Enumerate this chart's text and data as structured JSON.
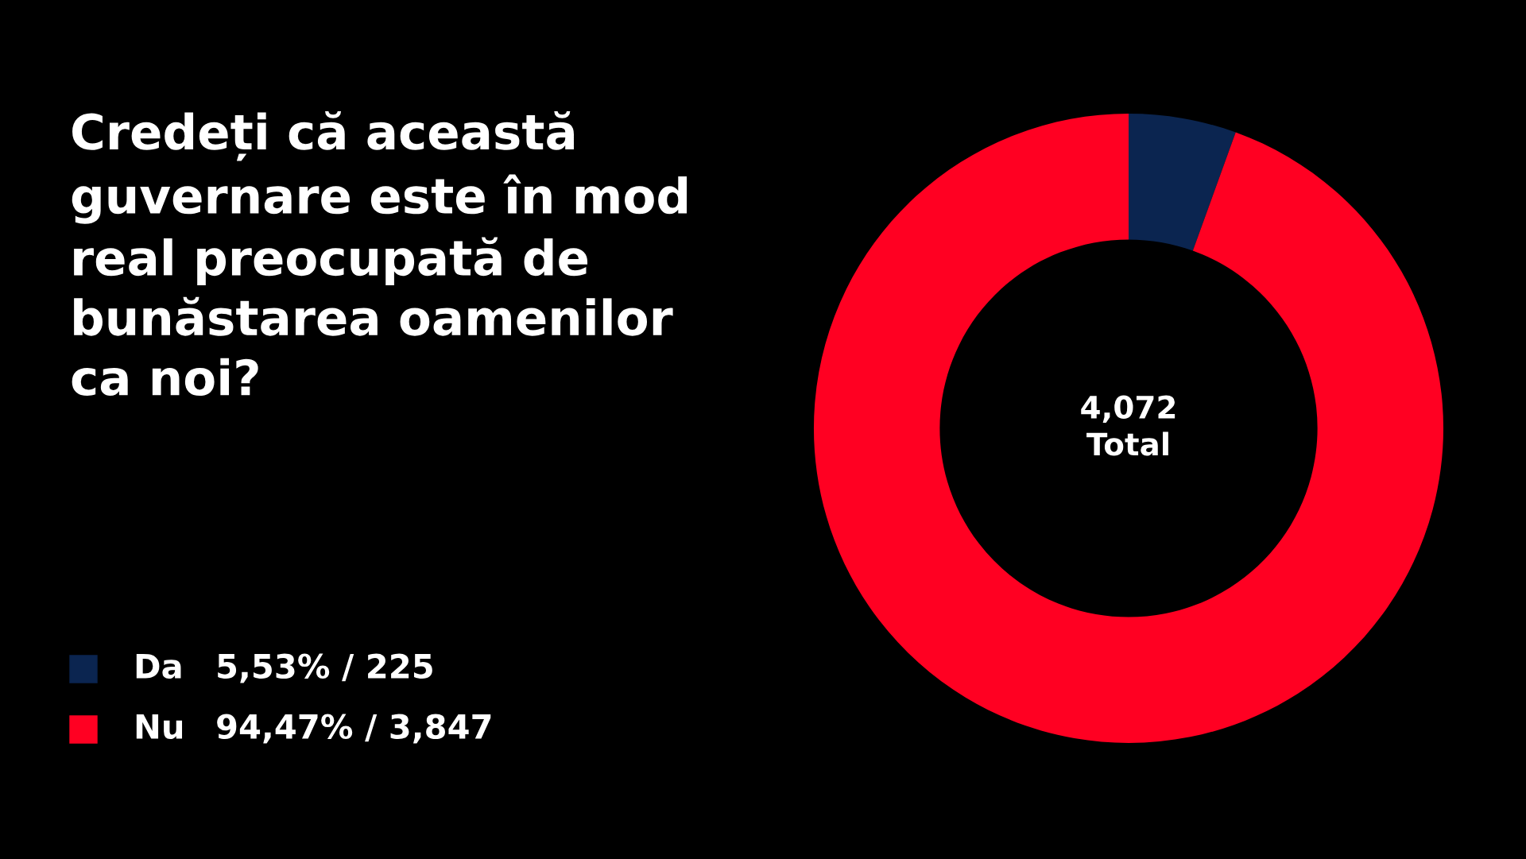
{
  "chart_data": {
    "type": "donut",
    "title": "Credeți că această\nguvernare este în mod\nreal preocupată de\nbunăstarea oamenilor\nca noi?",
    "categories": [
      "Da",
      "Nu"
    ],
    "values": [
      225,
      3847
    ],
    "colors": [
      "#0b2550",
      "#ff0022"
    ],
    "value_labels": [
      "5,53% / 225",
      "94,47% / 3,847"
    ],
    "annotations": [
      "4,072\nTotal"
    ],
    "legend": "bottom left"
  }
}
